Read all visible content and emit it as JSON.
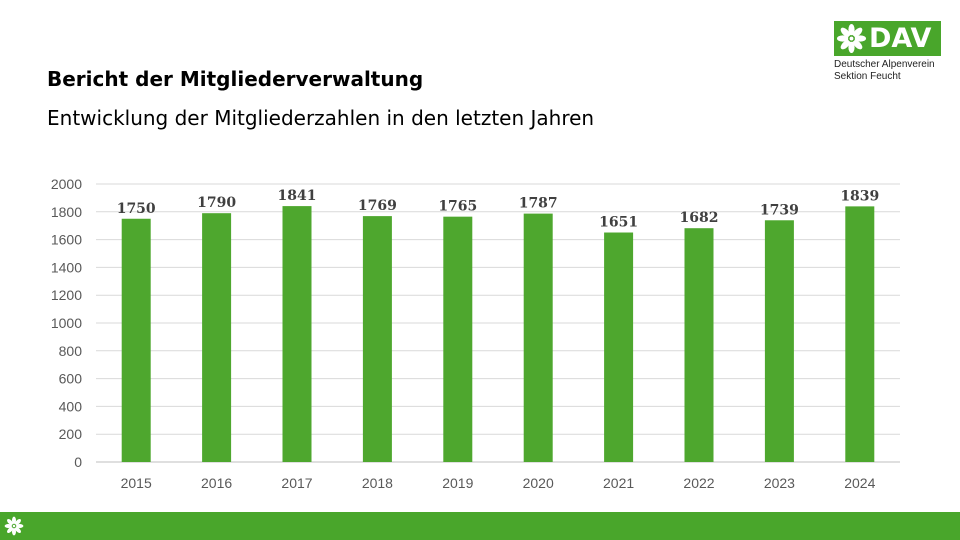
{
  "slide": {
    "title": "Bericht der Mitgliederverwaltung",
    "subtitle": "Entwicklung der Mitgliederzahlen in den letzten Jahren"
  },
  "logo": {
    "brand": "DAV",
    "line1": "Deutscher Alpenverein",
    "line2": "Sektion Feucht",
    "icon": "edelweiss-icon",
    "color": "#49a62b"
  },
  "footer": {
    "icon": "edelweiss-icon",
    "color": "#49a62b"
  },
  "chart_data": {
    "type": "bar",
    "categories": [
      "2015",
      "2016",
      "2017",
      "2018",
      "2019",
      "2020",
      "2021",
      "2022",
      "2023",
      "2024"
    ],
    "values": [
      1750,
      1790,
      1841,
      1769,
      1765,
      1787,
      1651,
      1682,
      1739,
      1839
    ],
    "ylim": [
      0,
      2000
    ],
    "yticks": [
      0,
      200,
      400,
      600,
      800,
      1000,
      1200,
      1400,
      1600,
      1800,
      2000
    ],
    "grid": true,
    "legend": "none",
    "bar_color": "#4ea72e",
    "data_labels": true
  }
}
